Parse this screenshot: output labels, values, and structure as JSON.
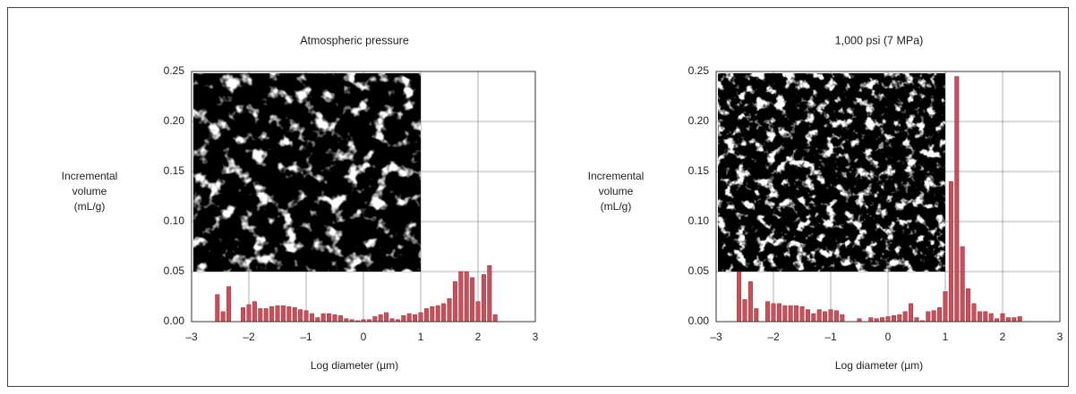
{
  "chart_data": [
    {
      "type": "bar",
      "title": "Atmospheric pressure",
      "xlabel": "Log diameter (µm)",
      "ylabel": [
        "Incremental",
        "volume",
        "(mL/g)"
      ],
      "color": "#c8505a",
      "grid": true,
      "xlim": [
        -3,
        3
      ],
      "ylim": [
        0,
        0.25
      ],
      "xticks": [
        {
          "value": -3,
          "label": "–3"
        },
        {
          "value": -2,
          "label": "–2"
        },
        {
          "value": -1,
          "label": "–1"
        },
        0,
        1,
        2,
        3
      ],
      "yticks": [
        {
          "value": 0,
          "label": "0.00"
        },
        0.05,
        {
          "value": 0.1,
          "label": "0.10"
        },
        0.15,
        {
          "value": 0.2,
          "label": "0.20"
        },
        0.25
      ],
      "x": [
        -2.55,
        -2.45,
        -2.35,
        -2.1,
        -2.0,
        -1.9,
        -1.8,
        -1.7,
        -1.6,
        -1.5,
        -1.4,
        -1.3,
        -1.2,
        -1.1,
        -1.0,
        -0.9,
        -0.8,
        -0.7,
        -0.6,
        -0.5,
        -0.4,
        -0.3,
        -0.2,
        -0.1,
        0.0,
        0.1,
        0.2,
        0.3,
        0.4,
        0.5,
        0.6,
        0.7,
        0.8,
        0.9,
        1.0,
        1.1,
        1.2,
        1.3,
        1.4,
        1.5,
        1.6,
        1.7,
        1.8,
        1.9,
        2.0,
        2.1,
        2.2,
        2.3
      ],
      "values": [
        0.027,
        0.01,
        0.035,
        0.014,
        0.017,
        0.02,
        0.013,
        0.013,
        0.015,
        0.016,
        0.016,
        0.015,
        0.014,
        0.012,
        0.011,
        0.008,
        0.004,
        0.008,
        0.008,
        0.007,
        0.006,
        0.003,
        0.002,
        0.001,
        0.002,
        0.002,
        0.005,
        0.007,
        0.009,
        0.003,
        0.002,
        0.006,
        0.008,
        0.007,
        0.009,
        0.013,
        0.015,
        0.016,
        0.018,
        0.023,
        0.04,
        0.05,
        0.05,
        0.044,
        0.02,
        0.047,
        0.056,
        0.007
      ]
    },
    {
      "type": "bar",
      "title": "1,000 psi (7 MPa)",
      "xlabel": "Log diameter (µm)",
      "ylabel": [
        "Incremental",
        "volume",
        "(mL/g)"
      ],
      "color": "#c8505a",
      "grid": true,
      "xlim": [
        -3,
        3
      ],
      "ylim": [
        0,
        0.25
      ],
      "xticks": [
        {
          "value": -3,
          "label": "–3"
        },
        {
          "value": -2,
          "label": "–2"
        },
        {
          "value": -1,
          "label": "–1"
        },
        0,
        1,
        2,
        3
      ],
      "yticks": [
        {
          "value": 0,
          "label": "0.00"
        },
        0.05,
        {
          "value": 0.1,
          "label": "0.10"
        },
        0.15,
        {
          "value": 0.2,
          "label": "0.20"
        },
        0.25
      ],
      "x": [
        -2.6,
        -2.5,
        -2.4,
        -2.3,
        -2.1,
        -2.0,
        -1.9,
        -1.8,
        -1.7,
        -1.6,
        -1.5,
        -1.4,
        -1.3,
        -1.2,
        -1.1,
        -1.0,
        -0.9,
        -0.8,
        -0.5,
        -0.3,
        -0.2,
        -0.1,
        0.0,
        0.1,
        0.2,
        0.3,
        0.4,
        0.5,
        0.6,
        0.7,
        0.8,
        0.9,
        1.0,
        1.1,
        1.2,
        1.3,
        1.4,
        1.5,
        1.6,
        1.7,
        1.8,
        1.9,
        2.0,
        2.1,
        2.2,
        2.3
      ],
      "values": [
        0.05,
        0.022,
        0.04,
        0.013,
        0.02,
        0.018,
        0.018,
        0.016,
        0.016,
        0.016,
        0.015,
        0.012,
        0.008,
        0.012,
        0.01,
        0.012,
        0.011,
        0.007,
        0.003,
        0.004,
        0.003,
        0.004,
        0.005,
        0.006,
        0.007,
        0.01,
        0.018,
        0.004,
        0.001,
        0.01,
        0.011,
        0.014,
        0.03,
        0.14,
        0.245,
        0.075,
        0.033,
        0.018,
        0.01,
        0.01,
        0.008,
        0.003,
        0.008,
        0.004,
        0.004,
        0.005
      ]
    }
  ]
}
